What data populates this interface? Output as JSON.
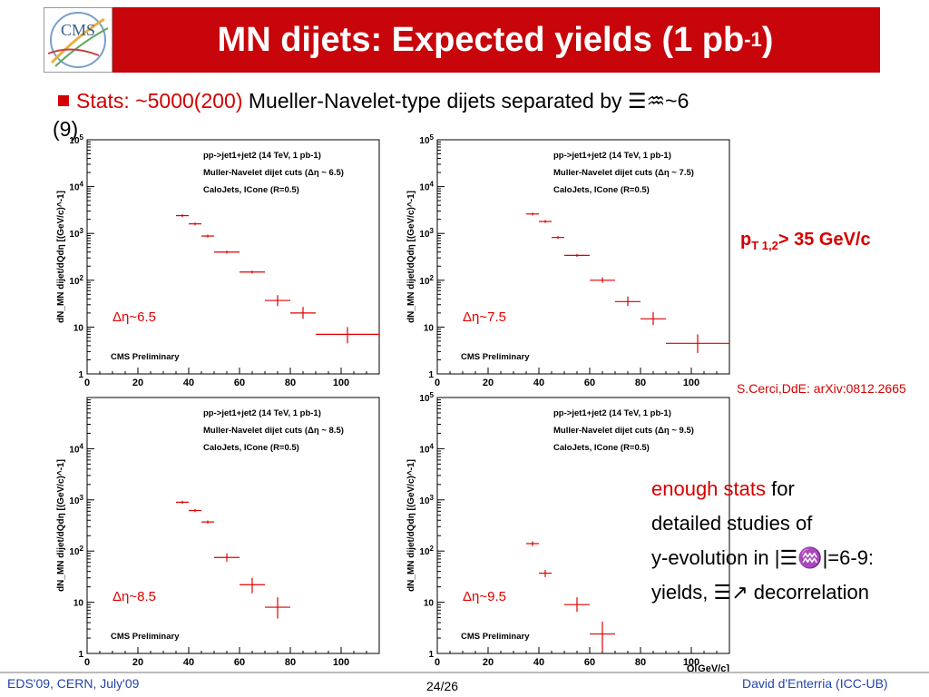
{
  "header": {
    "title": "MN dijets: Expected yields (1 pb",
    "title_sup": "-1",
    "title_tail": ")",
    "logo_text": "CMS",
    "bar_color": "#c8050a"
  },
  "stats": {
    "prefix": "Stats: ~5000(200)",
    "rest": " Mueller-Navelet-type dijets separated by ",
    "deta_glyph": "☰♒",
    "value": "~6",
    "value2": "(9)"
  },
  "side": {
    "pt_cut_main": "p",
    "pt_cut_sub": "T 1,2",
    "pt_cut_tail": "> 35 GeV/c",
    "reference": "S.Cerci,DdE: arXiv:0812.2665",
    "note_line1_red": "enough stats",
    "note_line1_black": " for",
    "note_line2": "detailed studies of",
    "note_line3": "y-evolution in |☰♒|=6-9:",
    "note_line4": "yields, ☰↗ decorrelation"
  },
  "footer": {
    "left": "EDS'09, CERN, July'09",
    "center": "24/26",
    "right": "David d'Enterria (ICC-UB)"
  },
  "colors": {
    "accent_red": "#d40000",
    "marker": "#e00000"
  },
  "chart_data": [
    {
      "type": "scatter",
      "title": "",
      "legend_lines": [
        "pp->jet1+jet2 (14 TeV, 1 pb-1)",
        "Muller-Navelet dijet cuts (Δη ~ 6.5)",
        "CaloJets, ICone (R=0.5)"
      ],
      "label": "Δη~6.5",
      "watermark": "CMS Preliminary",
      "xlabel": "",
      "ylabel": "dN_MN dijet/dQdη [(GeV/c)^-1]",
      "xlim": [
        0,
        115
      ],
      "ylim": [
        1,
        100000
      ],
      "log_y": true,
      "x_ticks": [
        0,
        20,
        40,
        60,
        80,
        100
      ],
      "y_ticks": [
        "1",
        "10",
        "10^2",
        "10^3",
        "10^4",
        "10^5"
      ],
      "points": [
        {
          "x": 37.5,
          "xerr": 2.5,
          "y": 2400
        },
        {
          "x": 42.5,
          "xerr": 2.5,
          "y": 1600
        },
        {
          "x": 47.5,
          "xerr": 2.5,
          "y": 880
        },
        {
          "x": 55,
          "xerr": 5,
          "y": 400
        },
        {
          "x": 65,
          "xerr": 5,
          "y": 150
        },
        {
          "x": 75,
          "xerr": 5,
          "y": 37,
          "yerr_lo": 28,
          "yerr_hi": 48
        },
        {
          "x": 85,
          "xerr": 5,
          "y": 20,
          "yerr_lo": 15,
          "yerr_hi": 27
        },
        {
          "x": 102.5,
          "xerr": 12.5,
          "y": 7,
          "yerr_lo": 4.5,
          "yerr_hi": 10
        }
      ]
    },
    {
      "type": "scatter",
      "title": "",
      "legend_lines": [
        "pp->jet1+jet2 (14 TeV, 1 pb-1)",
        "Muller-Navelet dijet cuts (Δη ~ 7.5)",
        "CaloJets, ICone (R=0.5)"
      ],
      "label": "Δη~7.5",
      "watermark": "CMS Preliminary",
      "xlabel": "",
      "ylabel": "dN_MN dijet/dQdη [(GeV/c)^-1]",
      "xlim": [
        0,
        115
      ],
      "ylim": [
        1,
        100000
      ],
      "log_y": true,
      "x_ticks": [
        0,
        20,
        40,
        60,
        80,
        100
      ],
      "y_ticks": [
        "1",
        "10",
        "10^2",
        "10^3",
        "10^4",
        "10^5"
      ],
      "points": [
        {
          "x": 37.5,
          "xerr": 2.5,
          "y": 2600
        },
        {
          "x": 42.5,
          "xerr": 2.5,
          "y": 1800
        },
        {
          "x": 47.5,
          "xerr": 2.5,
          "y": 820
        },
        {
          "x": 55,
          "xerr": 5,
          "y": 340
        },
        {
          "x": 65,
          "xerr": 5,
          "y": 100,
          "yerr_lo": 88,
          "yerr_hi": 115
        },
        {
          "x": 75,
          "xerr": 5,
          "y": 35,
          "yerr_lo": 28,
          "yerr_hi": 45
        },
        {
          "x": 85,
          "xerr": 5,
          "y": 15,
          "yerr_lo": 11,
          "yerr_hi": 21
        },
        {
          "x": 102.5,
          "xerr": 12.5,
          "y": 4.5,
          "yerr_lo": 2.8,
          "yerr_hi": 7
        }
      ]
    },
    {
      "type": "scatter",
      "title": "",
      "legend_lines": [
        "pp->jet1+jet2 (14 TeV, 1 pb-1)",
        "Muller-Navelet dijet cuts (Δη ~ 8.5)",
        "CaloJets, ICone (R=0.5)"
      ],
      "label": "Δη~8.5",
      "watermark": "CMS Preliminary",
      "xlabel": "",
      "ylabel": "dN_MN dijet/dQdη [(GeV/c)^-1]",
      "xlim": [
        0,
        115
      ],
      "ylim": [
        1,
        100000
      ],
      "log_y": true,
      "x_ticks": [
        0,
        20,
        40,
        60,
        80,
        100
      ],
      "y_ticks": [
        "1",
        "10",
        "10^2",
        "10^3",
        "10^4"
      ],
      "points": [
        {
          "x": 37.5,
          "xerr": 2.5,
          "y": 900
        },
        {
          "x": 42.5,
          "xerr": 2.5,
          "y": 620
        },
        {
          "x": 47.5,
          "xerr": 2.5,
          "y": 370
        },
        {
          "x": 55,
          "xerr": 5,
          "y": 75,
          "yerr_lo": 62,
          "yerr_hi": 90
        },
        {
          "x": 65,
          "xerr": 5,
          "y": 22,
          "yerr_lo": 15,
          "yerr_hi": 30
        },
        {
          "x": 75,
          "xerr": 5,
          "y": 8,
          "yerr_lo": 4.8,
          "yerr_hi": 12.5
        }
      ]
    },
    {
      "type": "scatter",
      "title": "",
      "legend_lines": [
        "pp->jet1+jet2 (14 TeV, 1 pb-1)",
        "Muller-Navelet dijet cuts (Δη ~ 9.5)",
        "CaloJets, ICone (R=0.5)"
      ],
      "label": "Δη~9.5",
      "watermark": "CMS Preliminary",
      "xlabel": "Q[GeV/c]",
      "ylabel": "dN_MN dijet/dQdη [(GeV/c)^-1]",
      "xlim": [
        0,
        115
      ],
      "ylim": [
        1,
        100000
      ],
      "log_y": true,
      "x_ticks": [
        0,
        20,
        40,
        60,
        80,
        100
      ],
      "y_ticks": [
        "1",
        "10",
        "10^2",
        "10^3",
        "10^4",
        "10^5"
      ],
      "points": [
        {
          "x": 37.5,
          "xerr": 2.5,
          "y": 140,
          "yerr_lo": 125,
          "yerr_hi": 155
        },
        {
          "x": 42.5,
          "xerr": 2.5,
          "y": 37,
          "yerr_lo": 31,
          "yerr_hi": 43
        },
        {
          "x": 55,
          "xerr": 5,
          "y": 9,
          "yerr_lo": 6.5,
          "yerr_hi": 12.5
        },
        {
          "x": 65,
          "xerr": 5,
          "y": 2.4,
          "yerr_lo": 1.1,
          "yerr_hi": 4.2
        }
      ]
    }
  ]
}
